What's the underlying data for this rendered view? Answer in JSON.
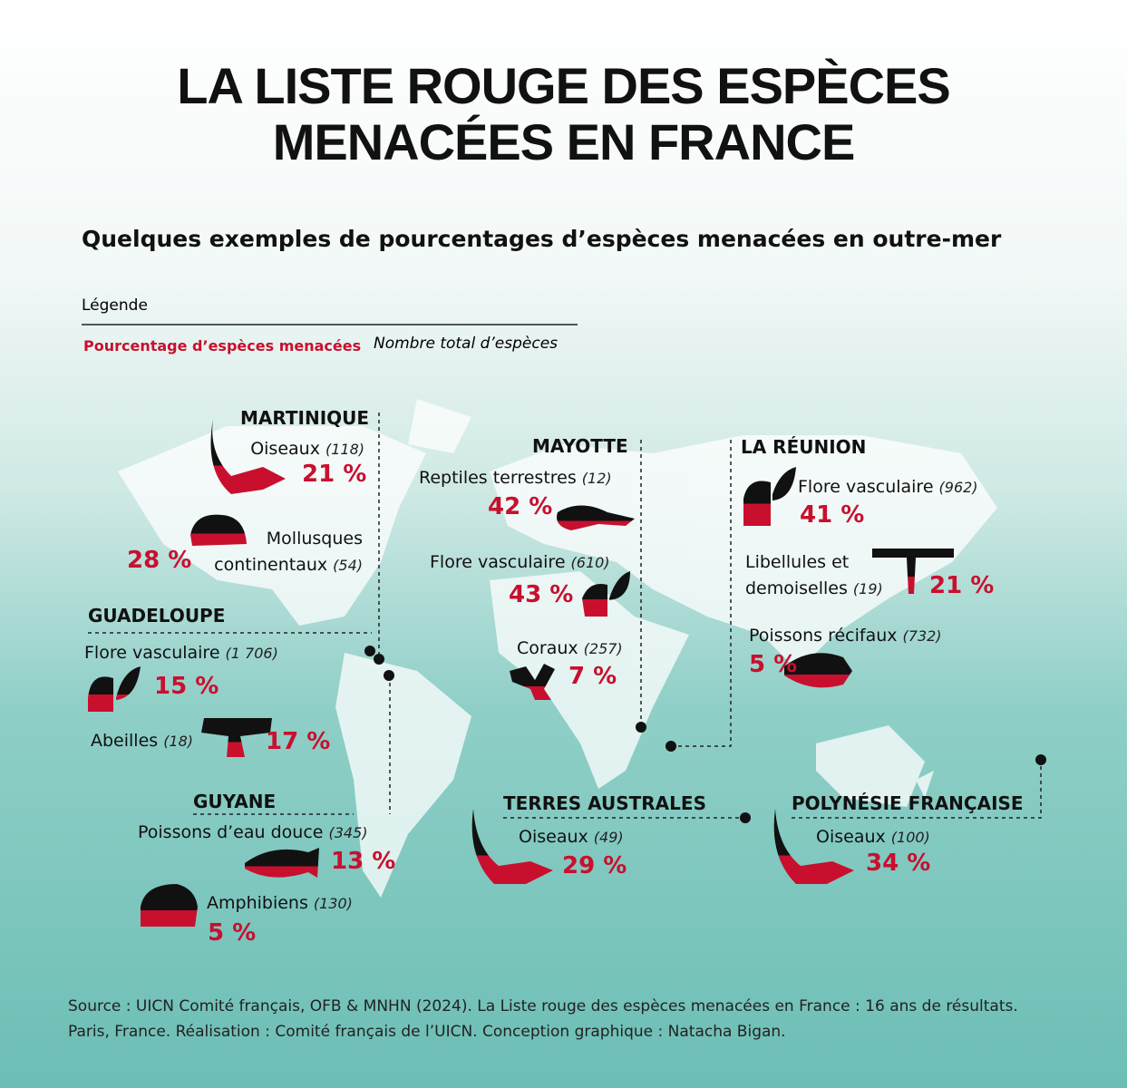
{
  "header": {
    "title_line1": "LA LISTE ROUGE DES ESPÈCES",
    "title_line2": "MENACÉES EN FRANCE",
    "subtitle": "Quelques exemples de pourcentages d’espèces menacées en outre-mer"
  },
  "legend": {
    "title": "Légende",
    "percent_label": "Pourcentage d’espèces menacées",
    "count_label": "Nombre total d’espèces"
  },
  "regions": [
    {
      "name": "MARTINIQUE",
      "items": [
        {
          "label": "Oiseaux",
          "count": "(118)",
          "percent": "21 %"
        },
        {
          "label": "Mollusques continentaux",
          "count": "(54)",
          "percent": "28 %"
        }
      ]
    },
    {
      "name": "GUADELOUPE",
      "items": [
        {
          "label": "Flore vasculaire",
          "count": "(1 706)",
          "percent": "15 %"
        },
        {
          "label": "Abeilles",
          "count": "(18)",
          "percent": "17 %"
        }
      ]
    },
    {
      "name": "GUYANE",
      "items": [
        {
          "label": "Poissons d’eau douce",
          "count": "(345)",
          "percent": "13 %"
        },
        {
          "label": "Amphibiens",
          "count": "(130)",
          "percent": "5 %"
        }
      ]
    },
    {
      "name": "MAYOTTE",
      "items": [
        {
          "label": "Reptiles terrestres",
          "count": "(12)",
          "percent": "42 %"
        },
        {
          "label": "Flore vasculaire",
          "count": "(610)",
          "percent": "43 %"
        },
        {
          "label": "Coraux",
          "count": "(257)",
          "percent": "7 %"
        }
      ]
    },
    {
      "name": "LA RÉUNION",
      "items": [
        {
          "label": "Flore vasculaire",
          "count": "(962)",
          "percent": "41 %"
        },
        {
          "label": "Libellules et demoiselles",
          "count": "(19)",
          "percent": "21 %"
        },
        {
          "label": "Poissons récifaux",
          "count": "(732)",
          "percent": "5 %"
        }
      ]
    },
    {
      "name": "TERRES AUSTRALES",
      "items": [
        {
          "label": "Oiseaux",
          "count": "(49)",
          "percent": "29 %"
        }
      ]
    },
    {
      "name": "POLYNÉSIE FRANÇAISE",
      "items": [
        {
          "label": "Oiseaux",
          "count": "(100)",
          "percent": "34 %"
        }
      ]
    }
  ],
  "source": {
    "line1": "Source : UICN Comité français, OFB & MNHN (2024). La Liste rouge des espèces menacées en France : 16 ans de résultats.",
    "line2": "Paris, France. Réalisation : Comité français de l’UICN. Conception graphique : Natacha Bigan."
  }
}
